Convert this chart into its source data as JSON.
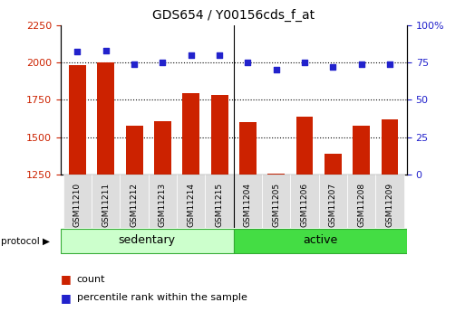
{
  "title": "GDS654 / Y00156cds_f_at",
  "categories": [
    "GSM11210",
    "GSM11211",
    "GSM11212",
    "GSM11213",
    "GSM11214",
    "GSM11215",
    "GSM11204",
    "GSM11205",
    "GSM11206",
    "GSM11207",
    "GSM11208",
    "GSM11209"
  ],
  "counts": [
    1980,
    2000,
    1575,
    1610,
    1795,
    1785,
    1600,
    1260,
    1640,
    1390,
    1580,
    1620
  ],
  "percentiles": [
    82,
    83,
    74,
    75,
    80,
    80,
    75,
    70,
    75,
    72,
    74,
    74
  ],
  "ylim_left": [
    1250,
    2250
  ],
  "ylim_right": [
    0,
    100
  ],
  "yticks_left": [
    1250,
    1500,
    1750,
    2000,
    2250
  ],
  "yticks_right": [
    0,
    25,
    50,
    75,
    100
  ],
  "hlines": [
    2000,
    1750,
    1500
  ],
  "bar_color": "#cc2200",
  "dot_color": "#2222cc",
  "n_sedentary": 6,
  "sedentary_label": "sedentary",
  "active_label": "active",
  "sedentary_color": "#ccffcc",
  "active_color": "#44dd44",
  "sep_color": "#33aa33",
  "tick_box_color": "#dddddd",
  "bg_color": "#ffffff",
  "legend_count_label": "count",
  "legend_pct_label": "percentile rank within the sample",
  "protocol_label": "protocol",
  "title_fontsize": 10,
  "axis_fontsize": 8,
  "legend_fontsize": 8
}
